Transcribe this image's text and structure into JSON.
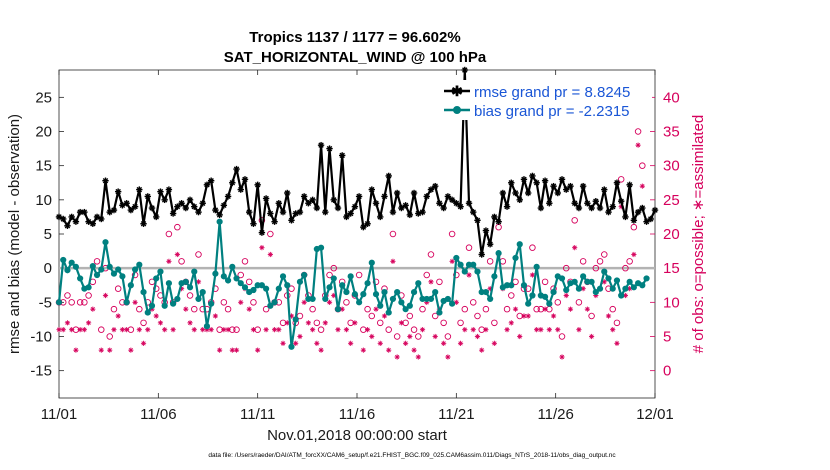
{
  "chart_data": {
    "type": "line",
    "title_line1": "Tropics 1137 / 1177 = 96.602%",
    "title_line2": "SAT_HORIZONTAL_WIND @ 100 hPa",
    "xlabel": "Nov.01,2018 00:00:00 start",
    "ylabel_left": "rmse and bias (model - observation)",
    "ylabel_right": "# of obs: o=possible; ∗=assimilated",
    "x_tick_labels": [
      "11/01",
      "11/06",
      "11/11",
      "11/16",
      "11/21",
      "11/26",
      "12/01"
    ],
    "y_left_range": [
      -19,
      29
    ],
    "y_left_ticks": [
      "-15",
      "-10",
      "-5",
      "0",
      "5",
      "10",
      "15",
      "20",
      "25"
    ],
    "y_right_range": [
      -4,
      44
    ],
    "y_right_ticks": [
      "0",
      "5",
      "10",
      "15",
      "20",
      "25",
      "30",
      "35",
      "40"
    ],
    "legend": [
      {
        "label": "rmse grand pr = 8.8245",
        "color": "#000000"
      },
      {
        "label": "bias grand pr = -2.2315",
        "color": "#007a7a"
      }
    ],
    "colors": {
      "rmse": "#000000",
      "bias": "#008080",
      "obs": "#d6005c",
      "zero": "#b3b3b3"
    },
    "series": [
      {
        "name": "rmse",
        "values": [
          7.5,
          7.2,
          6.2,
          7.5,
          6.8,
          8.2,
          8.2,
          6.8,
          6.5,
          7.5,
          7.2,
          12.8,
          8.2,
          8.5,
          11.2,
          9.2,
          9.5,
          8.5,
          9,
          11.5,
          6.5,
          10.5,
          8.8,
          7.5,
          11.2,
          10,
          11.5,
          8,
          9,
          9.5,
          8.8,
          10,
          9,
          8.2,
          9.5,
          12.2,
          12.8,
          8.5,
          7.8,
          9.2,
          10.5,
          12.5,
          14.5,
          11.5,
          13,
          8.2,
          6.5,
          12.2,
          5.2,
          10.2,
          8,
          6.8,
          9.5,
          8.2,
          11,
          7,
          8,
          8.2,
          10.5,
          9.5,
          10,
          8.8,
          18,
          8.2,
          17.5,
          10,
          8.8,
          16.5,
          7.5,
          8,
          9,
          10.5,
          6,
          6.5,
          11.5,
          9.5,
          7.5,
          10.5,
          13.5,
          8.2,
          11,
          8.8,
          9.2,
          7.8,
          11,
          8,
          8.2,
          10.5,
          11.5,
          12,
          9.5,
          8.8,
          10.5,
          10,
          9.5,
          9,
          29,
          9.5,
          8.2,
          7,
          2,
          5.5,
          3.5,
          7.5,
          6.8,
          11,
          9,
          12.5,
          11,
          10,
          13,
          11,
          13.5,
          12.5,
          8.8,
          12.8,
          9.5,
          12,
          11,
          13,
          11.5,
          12,
          9.5,
          8.8,
          12,
          9.5,
          8.8,
          9.8,
          8.8,
          11.5,
          8.2,
          9,
          12.5,
          9.8,
          7.5,
          12.2,
          7,
          8.2,
          8.8,
          6.8,
          7.2,
          8.5
        ]
      },
      {
        "name": "bias",
        "values": [
          -5,
          1.2,
          -0.3,
          0.8,
          0.2,
          -1.5,
          -3,
          -2.8,
          0.3,
          -1,
          -0.2,
          3.8,
          0.2,
          -0.8,
          -0.2,
          -1.2,
          -5,
          -2.5,
          -0.2,
          0.5,
          -3.5,
          -6.5,
          -5.5,
          -1.5,
          -0.5,
          -5.5,
          -2.2,
          -5.2,
          -4.5,
          -2.2,
          -2,
          -2.8,
          -0.5,
          -4.5,
          -3.5,
          -8.5,
          -5.2,
          -0.8,
          6.8,
          -1.2,
          -1.8,
          0.2,
          -1.5,
          -2.2,
          -2.8,
          -3.5,
          -3.2,
          -2.5,
          -2.5,
          -3,
          -5.5,
          -5,
          -3,
          -1.2,
          -2.5,
          -11.5,
          -7.5,
          -2,
          -1,
          -4.5,
          -4.5,
          2.8,
          3,
          -4.5,
          -2.8,
          -1.5,
          -6,
          -2.5,
          -3.5,
          -1.2,
          -3.8,
          -5,
          -3.8,
          -2.2,
          0.8,
          -3.8,
          -5.5,
          -3.5,
          -6.5,
          -4.5,
          -3.5,
          -5,
          -6,
          -5.5,
          -3.5,
          -2.2,
          -4.5,
          -4.5,
          -4.5,
          -3.5,
          -6.5,
          -4.8,
          -4.5,
          -5.2,
          1.5,
          0.5,
          -0.5,
          0.5,
          0.5,
          -0.5,
          -3.5,
          -3.5,
          -4.5,
          -1.2,
          2.2,
          -2.8,
          -2.5,
          -2.5,
          1.5,
          3.5,
          -2.5,
          -5.2,
          -4,
          0.2,
          -4,
          -4.2,
          -5.2,
          -3.5,
          -1.2,
          -1.5,
          -3.2,
          -2.2,
          -2,
          -3,
          -1.2,
          -2,
          -2,
          -3.5,
          -3,
          -0.5,
          -1.5,
          -3,
          -1.8,
          -4,
          -3,
          -2,
          -2.8,
          -2.2,
          -2.5,
          -1.5
        ]
      },
      {
        "name": "obs_possible",
        "values": [
          10,
          10,
          11,
          10,
          6,
          10,
          10,
          11,
          13,
          16,
          6,
          15,
          5,
          9,
          12,
          10,
          10,
          6,
          14,
          9,
          7,
          10,
          13,
          12,
          11,
          10,
          20,
          10,
          21,
          16,
          13,
          11,
          9,
          17,
          9,
          9,
          10,
          12,
          6,
          10,
          9,
          6,
          6,
          14,
          16,
          13,
          10,
          6,
          22,
          9,
          20,
          10,
          10,
          7,
          11,
          12,
          7,
          8,
          14,
          11,
          9,
          7,
          6,
          11,
          14,
          15,
          9,
          13,
          10,
          7,
          11,
          14,
          6,
          9,
          8,
          13,
          7,
          12,
          6,
          20,
          5,
          11,
          7,
          8,
          6,
          5,
          9,
          14,
          17,
          8,
          13,
          7,
          5,
          20,
          14,
          7,
          9,
          18,
          10,
          8,
          6,
          9,
          16,
          7,
          21,
          16,
          9,
          11,
          13,
          8,
          12,
          12,
          18,
          9,
          9,
          13,
          9,
          12,
          10,
          5,
          15,
          13,
          22,
          10,
          16,
          13,
          8,
          15,
          16,
          17,
          12,
          9,
          7,
          28,
          15,
          16,
          21,
          35,
          30
        ]
      },
      {
        "name": "obs_assimilated",
        "values": [
          6,
          6,
          7,
          6,
          3,
          6,
          6,
          7,
          9,
          14,
          3,
          11,
          3,
          6,
          8,
          6,
          6,
          3,
          10,
          6,
          4,
          6,
          9,
          8,
          7,
          6,
          16,
          6,
          17,
          12,
          9,
          7,
          6,
          13,
          6,
          6,
          6,
          8,
          3,
          6,
          6,
          3,
          3,
          10,
          12,
          9,
          6,
          3,
          18,
          6,
          17,
          6,
          6,
          4,
          7,
          8,
          4,
          5,
          10,
          7,
          6,
          4,
          3,
          7,
          10,
          11,
          6,
          9,
          6,
          4,
          7,
          10,
          3,
          6,
          5,
          9,
          4,
          8,
          3,
          16,
          2,
          7,
          4,
          5,
          3,
          2,
          6,
          10,
          13,
          5,
          9,
          4,
          2,
          16,
          10,
          4,
          6,
          14,
          6,
          5,
          3,
          6,
          12,
          4,
          17,
          12,
          6,
          7,
          9,
          5,
          8,
          8,
          14,
          6,
          6,
          9,
          6,
          8,
          6,
          2,
          11,
          9,
          18,
          6,
          12,
          9,
          5,
          11,
          12,
          13,
          8,
          6,
          4,
          24,
          11,
          12,
          17,
          33,
          27
        ]
      }
    ],
    "obs_series_names": [
      "obs_possible",
      "obs_assimilated"
    ],
    "footnote": "data file: /Users/raeder/DAI/ATM_forcXX/CAM6_setup/f.e21.FHIST_BGC.f09_025.CAM6assim.011/Diags_NTrS_2018-11/obs_diag_output.nc"
  }
}
